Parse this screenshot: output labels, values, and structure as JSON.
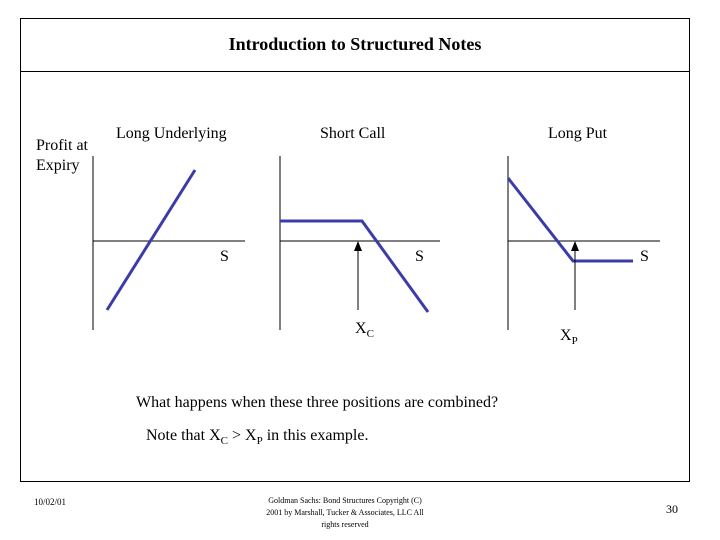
{
  "slide": {
    "title": "Introduction to Structured Notes",
    "y_axis_label_line1": "Profit at",
    "y_axis_label_line2": "Expiry",
    "question": "What happens when these three positions are combined?",
    "note": {
      "prefix": "Note that X",
      "sub_c": "C",
      "middle": " > X",
      "sub_p": "P",
      "suffix": " in this example."
    },
    "footer": {
      "date": "10/02/01",
      "source_line1": "Goldman Sachs:  Bond Structures    Copyright (C)",
      "source_line2": "2001 by Marshall, Tucker & Associates, LLC   All",
      "source_line3": "rights reserved",
      "page_number": "30"
    }
  },
  "diagrams": [
    {
      "title": "Long Underlying",
      "x_label": "S"
    },
    {
      "title": "Short Call",
      "x_label": "S",
      "strike_label": "X",
      "strike_sub": "C"
    },
    {
      "title": "Long Put",
      "x_label": "S",
      "strike_label": "X",
      "strike_sub": "P"
    }
  ],
  "colors": {
    "payoff_line": "#3c3ca8",
    "axis": "#000000"
  }
}
